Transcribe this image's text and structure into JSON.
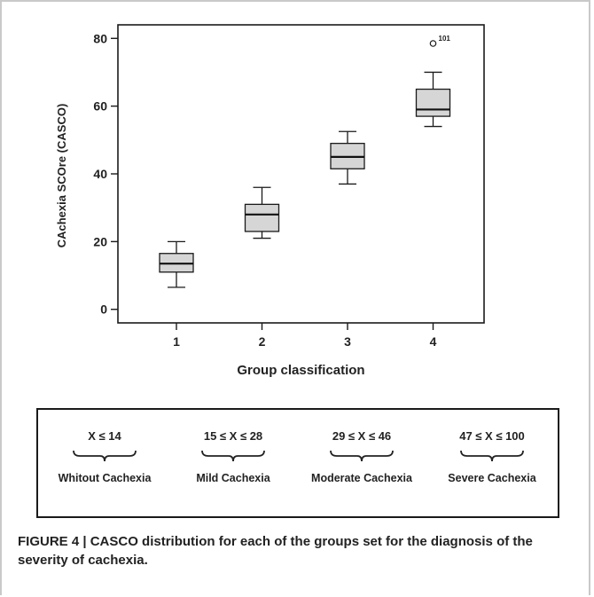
{
  "chart_data": {
    "type": "box",
    "ylabel": "CAchexia SCOre (CASCO)",
    "xlabel": "Group classification",
    "categories": [
      "1",
      "2",
      "3",
      "4"
    ],
    "yticks": [
      0,
      20,
      40,
      60,
      80
    ],
    "ylim": [
      -4,
      84
    ],
    "boxes": [
      {
        "category": "1",
        "min": 6.5,
        "q1": 11,
        "median": 13.5,
        "q3": 16.5,
        "max": 20
      },
      {
        "category": "2",
        "min": 21,
        "q1": 23,
        "median": 28,
        "q3": 31,
        "max": 36
      },
      {
        "category": "3",
        "min": 37,
        "q1": 41.5,
        "median": 45,
        "q3": 49,
        "max": 52.5
      },
      {
        "category": "4",
        "min": 54,
        "q1": 57,
        "median": 59,
        "q3": 65,
        "max": 70
      }
    ],
    "outliers": [
      {
        "category": "4",
        "value": 78.5,
        "label": "101"
      }
    ],
    "box_color": "#d6d6d6"
  },
  "legend": {
    "groups": [
      {
        "range": "X ≤ 14",
        "label": "Whitout Cachexia"
      },
      {
        "range": "15 ≤ X ≤ 28",
        "label": "Mild Cachexia"
      },
      {
        "range": "29 ≤ X ≤ 46",
        "label": "Moderate Cachexia"
      },
      {
        "range": "47 ≤ X ≤ 100",
        "label": "Severe Cachexia"
      }
    ]
  },
  "caption": {
    "text": "FIGURE 4 | CASCO distribution for each of the groups set for the diagnosis of the severity of cachexia."
  }
}
